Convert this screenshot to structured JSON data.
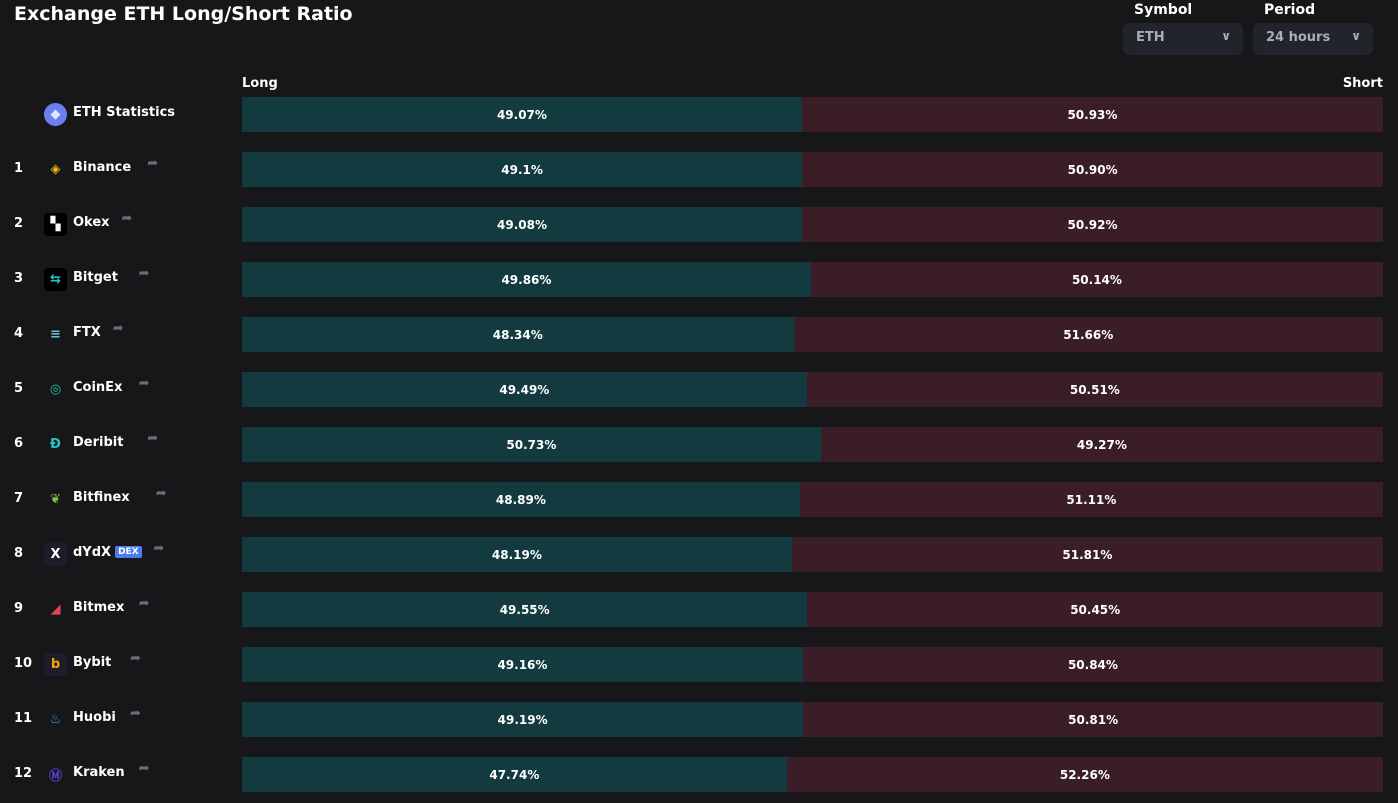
{
  "title": "Exchange ETH Long/Short Ratio",
  "filters": {
    "symbol_label": "Symbol",
    "symbol_value": "ETH",
    "period_label": "Period",
    "period_value": "24 hours"
  },
  "headers": {
    "long": "Long",
    "short": "Short"
  },
  "colors": {
    "long": "#133a3e",
    "short": "#3b1d27"
  },
  "summary": {
    "name": "ETH Statistics",
    "icon": "ethereum-icon",
    "long": "49.07%",
    "short": "50.93%",
    "long_pct": 49.07
  },
  "exchanges": [
    {
      "rank": "1",
      "name": "Binance",
      "icon": "binance-icon",
      "long": "49.1%",
      "short": "50.90%",
      "long_pct": 49.1
    },
    {
      "rank": "2",
      "name": "Okex",
      "icon": "okex-icon",
      "long": "49.08%",
      "short": "50.92%",
      "long_pct": 49.08
    },
    {
      "rank": "3",
      "name": "Bitget",
      "icon": "bitget-icon",
      "long": "49.86%",
      "short": "50.14%",
      "long_pct": 49.86
    },
    {
      "rank": "4",
      "name": "FTX",
      "icon": "ftx-icon",
      "long": "48.34%",
      "short": "51.66%",
      "long_pct": 48.34
    },
    {
      "rank": "5",
      "name": "CoinEx",
      "icon": "coinex-icon",
      "long": "49.49%",
      "short": "50.51%",
      "long_pct": 49.49
    },
    {
      "rank": "6",
      "name": "Deribit",
      "icon": "deribit-icon",
      "long": "50.73%",
      "short": "49.27%",
      "long_pct": 50.73
    },
    {
      "rank": "7",
      "name": "Bitfinex",
      "icon": "bitfinex-icon",
      "long": "48.89%",
      "short": "51.11%",
      "long_pct": 48.89
    },
    {
      "rank": "8",
      "name": "dYdX",
      "badge": "DEX",
      "icon": "dydx-icon",
      "long": "48.19%",
      "short": "51.81%",
      "long_pct": 48.19
    },
    {
      "rank": "9",
      "name": "Bitmex",
      "icon": "bitmex-icon",
      "long": "49.55%",
      "short": "50.45%",
      "long_pct": 49.55
    },
    {
      "rank": "10",
      "name": "Bybit",
      "icon": "bybit-icon",
      "long": "49.16%",
      "short": "50.84%",
      "long_pct": 49.16
    },
    {
      "rank": "11",
      "name": "Huobi",
      "icon": "huobi-icon",
      "long": "49.19%",
      "short": "50.81%",
      "long_pct": 49.19
    },
    {
      "rank": "12",
      "name": "Kraken",
      "icon": "kraken-icon",
      "long": "47.74%",
      "short": "52.26%",
      "long_pct": 47.74
    }
  ]
}
